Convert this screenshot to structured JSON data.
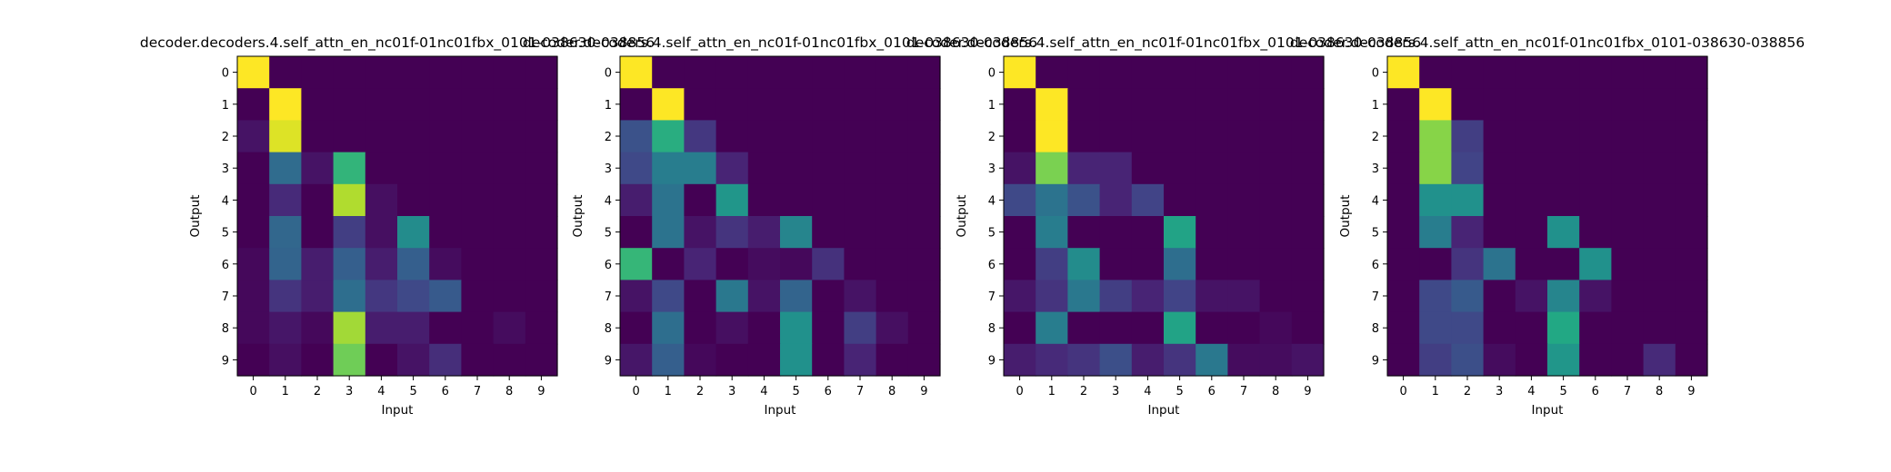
{
  "chart_data": [
    {
      "type": "heatmap",
      "title": "decoder.decoders.4.self_attn_en_nc01f-01nc01fbx_0101-038630-038856",
      "xlabel": "Input",
      "ylabel": "Output",
      "x_ticks": [
        "0",
        "1",
        "2",
        "3",
        "4",
        "5",
        "6",
        "7",
        "8",
        "9"
      ],
      "y_ticks": [
        "0",
        "1",
        "2",
        "3",
        "4",
        "5",
        "6",
        "7",
        "8",
        "9"
      ],
      "colormap": "viridis",
      "value_range": [
        0,
        1
      ],
      "values": [
        [
          1.0,
          0,
          0,
          0,
          0,
          0,
          0,
          0,
          0,
          0
        ],
        [
          0,
          1.0,
          0,
          0,
          0,
          0,
          0,
          0,
          0,
          0
        ],
        [
          0.05,
          0.95,
          0,
          0,
          0,
          0,
          0,
          0,
          0,
          0
        ],
        [
          0,
          0.35,
          0.05,
          0.65,
          0,
          0,
          0,
          0,
          0,
          0
        ],
        [
          0,
          0.12,
          0,
          0.88,
          0.04,
          0,
          0,
          0,
          0,
          0
        ],
        [
          0,
          0.33,
          0,
          0.18,
          0.04,
          0.48,
          0,
          0,
          0,
          0
        ],
        [
          0.02,
          0.32,
          0.08,
          0.3,
          0.08,
          0.3,
          0.03,
          0,
          0,
          0
        ],
        [
          0.02,
          0.15,
          0.08,
          0.36,
          0.16,
          0.22,
          0.28,
          0,
          0,
          0
        ],
        [
          0.02,
          0.06,
          0.02,
          0.86,
          0.08,
          0.08,
          0,
          0,
          0.03,
          0
        ],
        [
          0,
          0.04,
          0,
          0.78,
          0,
          0.05,
          0.13,
          0,
          0,
          0
        ]
      ]
    },
    {
      "type": "heatmap",
      "title": "decoder.decoders.4.self_attn_en_nc01f-01nc01fbx_0101-038630-038856",
      "xlabel": "Input",
      "ylabel": "Output",
      "x_ticks": [
        "0",
        "1",
        "2",
        "3",
        "4",
        "5",
        "6",
        "7",
        "8",
        "9"
      ],
      "y_ticks": [
        "0",
        "1",
        "2",
        "3",
        "4",
        "5",
        "6",
        "7",
        "8",
        "9"
      ],
      "colormap": "viridis",
      "value_range": [
        0,
        1
      ],
      "values": [
        [
          1.0,
          0,
          0,
          0,
          0,
          0,
          0,
          0,
          0,
          0
        ],
        [
          0,
          1.0,
          0,
          0,
          0,
          0,
          0,
          0,
          0,
          0
        ],
        [
          0.25,
          0.62,
          0.16,
          0,
          0,
          0,
          0,
          0,
          0,
          0
        ],
        [
          0.22,
          0.42,
          0.42,
          0.1,
          0,
          0,
          0,
          0,
          0,
          0
        ],
        [
          0.08,
          0.38,
          0,
          0.52,
          0,
          0,
          0,
          0,
          0,
          0
        ],
        [
          0,
          0.38,
          0.05,
          0.15,
          0.08,
          0.45,
          0,
          0,
          0,
          0
        ],
        [
          0.66,
          0,
          0.1,
          0,
          0.03,
          0.02,
          0.14,
          0,
          0,
          0
        ],
        [
          0.05,
          0.22,
          0,
          0.4,
          0.05,
          0.32,
          0,
          0.05,
          0,
          0
        ],
        [
          0,
          0.36,
          0,
          0.04,
          0,
          0.5,
          0,
          0.18,
          0.04,
          0
        ],
        [
          0.06,
          0.3,
          0.02,
          0,
          0,
          0.5,
          0,
          0.1,
          0,
          0
        ]
      ]
    },
    {
      "type": "heatmap",
      "title": "decoder.decoders.4.self_attn_en_nc01f-01nc01fbx_0101-038630-038856",
      "xlabel": "Input",
      "ylabel": "Output",
      "x_ticks": [
        "0",
        "1",
        "2",
        "3",
        "4",
        "5",
        "6",
        "7",
        "8",
        "9"
      ],
      "y_ticks": [
        "0",
        "1",
        "2",
        "3",
        "4",
        "5",
        "6",
        "7",
        "8",
        "9"
      ],
      "colormap": "viridis",
      "value_range": [
        0,
        1
      ],
      "values": [
        [
          1.0,
          0,
          0,
          0,
          0,
          0,
          0,
          0,
          0,
          0
        ],
        [
          0,
          1.0,
          0,
          0,
          0,
          0,
          0,
          0,
          0,
          0
        ],
        [
          0,
          1.0,
          0,
          0,
          0,
          0,
          0,
          0,
          0,
          0
        ],
        [
          0.05,
          0.8,
          0.1,
          0.1,
          0,
          0,
          0,
          0,
          0,
          0
        ],
        [
          0.22,
          0.38,
          0.25,
          0.1,
          0.2,
          0,
          0,
          0,
          0,
          0
        ],
        [
          0,
          0.42,
          0,
          0,
          0,
          0.58,
          0,
          0,
          0,
          0
        ],
        [
          0,
          0.18,
          0.48,
          0,
          0,
          0.36,
          0,
          0,
          0,
          0
        ],
        [
          0.06,
          0.15,
          0.4,
          0.18,
          0.1,
          0.2,
          0.05,
          0.05,
          0,
          0
        ],
        [
          0,
          0.42,
          0,
          0,
          0,
          0.58,
          0,
          0,
          0.02,
          0
        ],
        [
          0.08,
          0.12,
          0.15,
          0.24,
          0.08,
          0.15,
          0.4,
          0.03,
          0.03,
          0.05
        ]
      ]
    },
    {
      "type": "heatmap",
      "title": "decoder.decoders.4.self_attn_en_nc01f-01nc01fbx_0101-038630-038856",
      "xlabel": "Input",
      "ylabel": "Output",
      "x_ticks": [
        "0",
        "1",
        "2",
        "3",
        "4",
        "5",
        "6",
        "7",
        "8",
        "9"
      ],
      "y_ticks": [
        "0",
        "1",
        "2",
        "3",
        "4",
        "5",
        "6",
        "7",
        "8",
        "9"
      ],
      "colormap": "viridis",
      "value_range": [
        0,
        1
      ],
      "values": [
        [
          1.0,
          0,
          0,
          0,
          0,
          0,
          0,
          0,
          0,
          0
        ],
        [
          0,
          1.0,
          0,
          0,
          0,
          0,
          0,
          0,
          0,
          0
        ],
        [
          0,
          0.82,
          0.18,
          0,
          0,
          0,
          0,
          0,
          0,
          0
        ],
        [
          0,
          0.82,
          0.2,
          0,
          0,
          0,
          0,
          0,
          0,
          0
        ],
        [
          0,
          0.5,
          0.5,
          0,
          0,
          0,
          0,
          0,
          0,
          0
        ],
        [
          0,
          0.42,
          0.1,
          0,
          0,
          0.5,
          0,
          0,
          0,
          0
        ],
        [
          0,
          0,
          0.15,
          0.38,
          0,
          0,
          0.5,
          0,
          0,
          0
        ],
        [
          0,
          0.22,
          0.28,
          0,
          0.05,
          0.45,
          0.05,
          0,
          0,
          0
        ],
        [
          0,
          0.22,
          0.22,
          0,
          0,
          0.6,
          0,
          0,
          0,
          0
        ],
        [
          0,
          0.18,
          0.24,
          0.03,
          0,
          0.52,
          0,
          0,
          0.12,
          0
        ]
      ]
    }
  ]
}
